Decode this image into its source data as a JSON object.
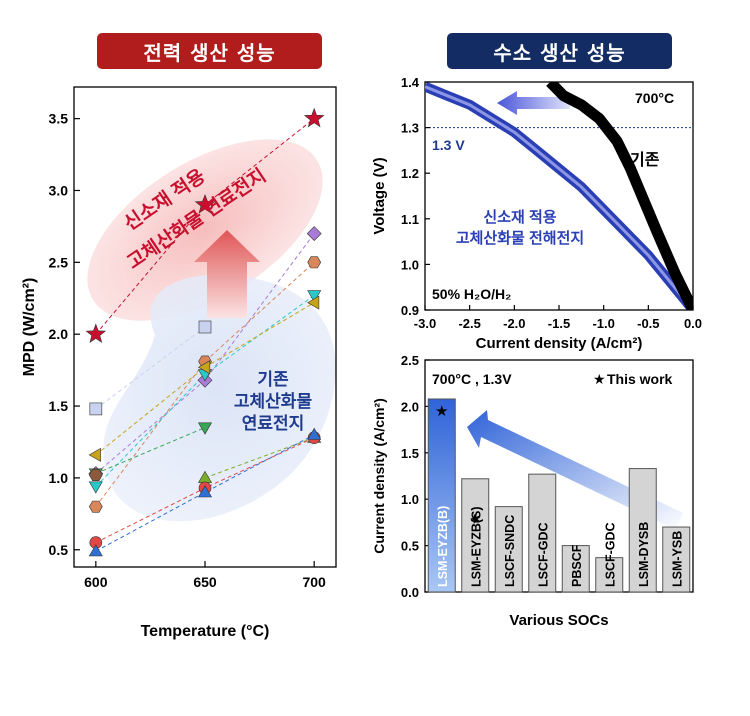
{
  "banners": {
    "left": "전력 생산 성능",
    "right": "수소 생산 성능"
  },
  "chart_data": [
    {
      "type": "scatter",
      "xlabel": "Temperature (°C)",
      "ylabel": "MPD (W/cm²)",
      "x_ticks": [
        "600",
        "650",
        "700"
      ],
      "y_ticks": [
        "0.5",
        "1.0",
        "1.5",
        "2.0",
        "2.5",
        "3.0",
        "3.5"
      ],
      "xlim": [
        590,
        710
      ],
      "ylim": [
        0.38,
        3.72
      ],
      "annotations": {
        "new_material": [
          "신소재 적용",
          "고체산화물 연료전지"
        ],
        "conventional": [
          "기존",
          "고체산화물",
          "연료전지"
        ]
      },
      "colors": {
        "new_material": "#c8102e",
        "conventional": "#1f3b8f"
      },
      "series": [
        {
          "marker": "star",
          "color": "#c8102e",
          "points": [
            [
              600,
              2.0
            ],
            [
              650,
              2.9
            ],
            [
              700,
              3.5
            ]
          ]
        },
        {
          "marker": "square",
          "color": "#c9d3ef",
          "points": [
            [
              600,
              1.48
            ],
            [
              650,
              2.05
            ]
          ]
        },
        {
          "marker": "diamond",
          "color": "#a97bd6",
          "points": [
            [
              600,
              1.03
            ],
            [
              650,
              1.68
            ],
            [
              700,
              2.7
            ]
          ]
        },
        {
          "marker": "hexagon",
          "color": "#d8865a",
          "points": [
            [
              600,
              0.8
            ],
            [
              650,
              1.81
            ],
            [
              700,
              2.5
            ]
          ]
        },
        {
          "marker": "triangle-down",
          "color": "#2ac9c9",
          "points": [
            [
              600,
              0.94
            ],
            [
              650,
              1.72
            ],
            [
              700,
              2.27
            ]
          ]
        },
        {
          "marker": "triangle-left",
          "color": "#c7a31a",
          "points": [
            [
              600,
              1.16
            ],
            [
              650,
              1.77
            ],
            [
              700,
              2.22
            ]
          ]
        },
        {
          "marker": "triangle-down",
          "color": "#3aa557",
          "points": [
            [
              600,
              1.03
            ],
            [
              650,
              1.35
            ]
          ]
        },
        {
          "marker": "triangle-up",
          "color": "#7cad2a",
          "points": [
            [
              650,
              1.0
            ],
            [
              700,
              1.28
            ]
          ]
        },
        {
          "marker": "circle",
          "color": "#e04848",
          "points": [
            [
              600,
              0.55
            ],
            [
              650,
              0.93
            ],
            [
              700,
              1.28
            ]
          ]
        },
        {
          "marker": "hexagon",
          "color": "#8b5a3c",
          "points": [
            [
              600,
              1.02
            ]
          ]
        },
        {
          "marker": "triangle-up",
          "color": "#2f6fd3",
          "points": [
            [
              600,
              0.49
            ],
            [
              650,
              0.9
            ],
            [
              700,
              1.3
            ]
          ]
        }
      ]
    },
    {
      "type": "line",
      "xlabel": "Current density (A/cm²)",
      "ylabel": "Voltage (V)",
      "x_ticks": [
        "-3.0",
        "-2.5",
        "-2.0",
        "-1.5",
        "-1.0",
        "-0.5",
        "0.0"
      ],
      "y_ticks": [
        "0.9",
        "1.0",
        "1.1",
        "1.2",
        "1.3",
        "1.4"
      ],
      "xlim": [
        -3.0,
        0.0
      ],
      "ylim": [
        0.9,
        1.4
      ],
      "reference_label": "1.3 V",
      "temperature_label": "700°C",
      "condition_label": "50% H₂O/H₂",
      "series_labels": {
        "conventional": "기존",
        "new_material": [
          "신소재 적용",
          "고체산화물 전해전지"
        ]
      },
      "colors": {
        "new_material": "#2b3fb5",
        "conventional": "#000000"
      },
      "series": [
        {
          "key": "new_material",
          "points": [
            [
              0.0,
              0.9
            ],
            [
              -0.25,
              0.96
            ],
            [
              -0.5,
              1.02
            ],
            [
              -0.75,
              1.07
            ],
            [
              -1.0,
              1.12
            ],
            [
              -1.25,
              1.17
            ],
            [
              -1.5,
              1.21
            ],
            [
              -1.75,
              1.25
            ],
            [
              -2.0,
              1.29
            ],
            [
              -2.25,
              1.32
            ],
            [
              -2.5,
              1.35
            ],
            [
              -2.75,
              1.37
            ],
            [
              -3.0,
              1.39
            ]
          ]
        },
        {
          "key": "conventional",
          "points": [
            [
              0.0,
              0.9
            ],
            [
              -0.2,
              0.98
            ],
            [
              -0.4,
              1.07
            ],
            [
              -0.55,
              1.14
            ],
            [
              -0.7,
              1.21
            ],
            [
              -0.85,
              1.27
            ],
            [
              -1.05,
              1.32
            ],
            [
              -1.25,
              1.35
            ],
            [
              -1.45,
              1.37
            ],
            [
              -1.6,
              1.4
            ]
          ]
        }
      ]
    },
    {
      "type": "bar",
      "xlabel": "Various SOCs",
      "ylabel": "Current density (A/cm²)",
      "title": "700°C , 1.3V",
      "legend": "This work",
      "ylim": [
        0.0,
        2.5
      ],
      "y_ticks": [
        "0.0",
        "0.5",
        "1.0",
        "1.5",
        "2.0",
        "2.5"
      ],
      "categories": [
        "LSM-EYZB(B)",
        "LSM-EYZB(S)",
        "LSCF-SNDC",
        "LSCF-GDC",
        "PBSCF",
        "LSCF-GDC",
        "LSM-DYSB",
        "LSM-YSB"
      ],
      "values": [
        2.08,
        1.22,
        0.92,
        1.27,
        0.5,
        0.37,
        1.33,
        0.7
      ],
      "this_work": [
        true,
        true,
        false,
        false,
        false,
        false,
        false,
        false
      ],
      "colors": {
        "highlight": "#2c6fd6",
        "normal": "#d4d4d4"
      }
    }
  ]
}
